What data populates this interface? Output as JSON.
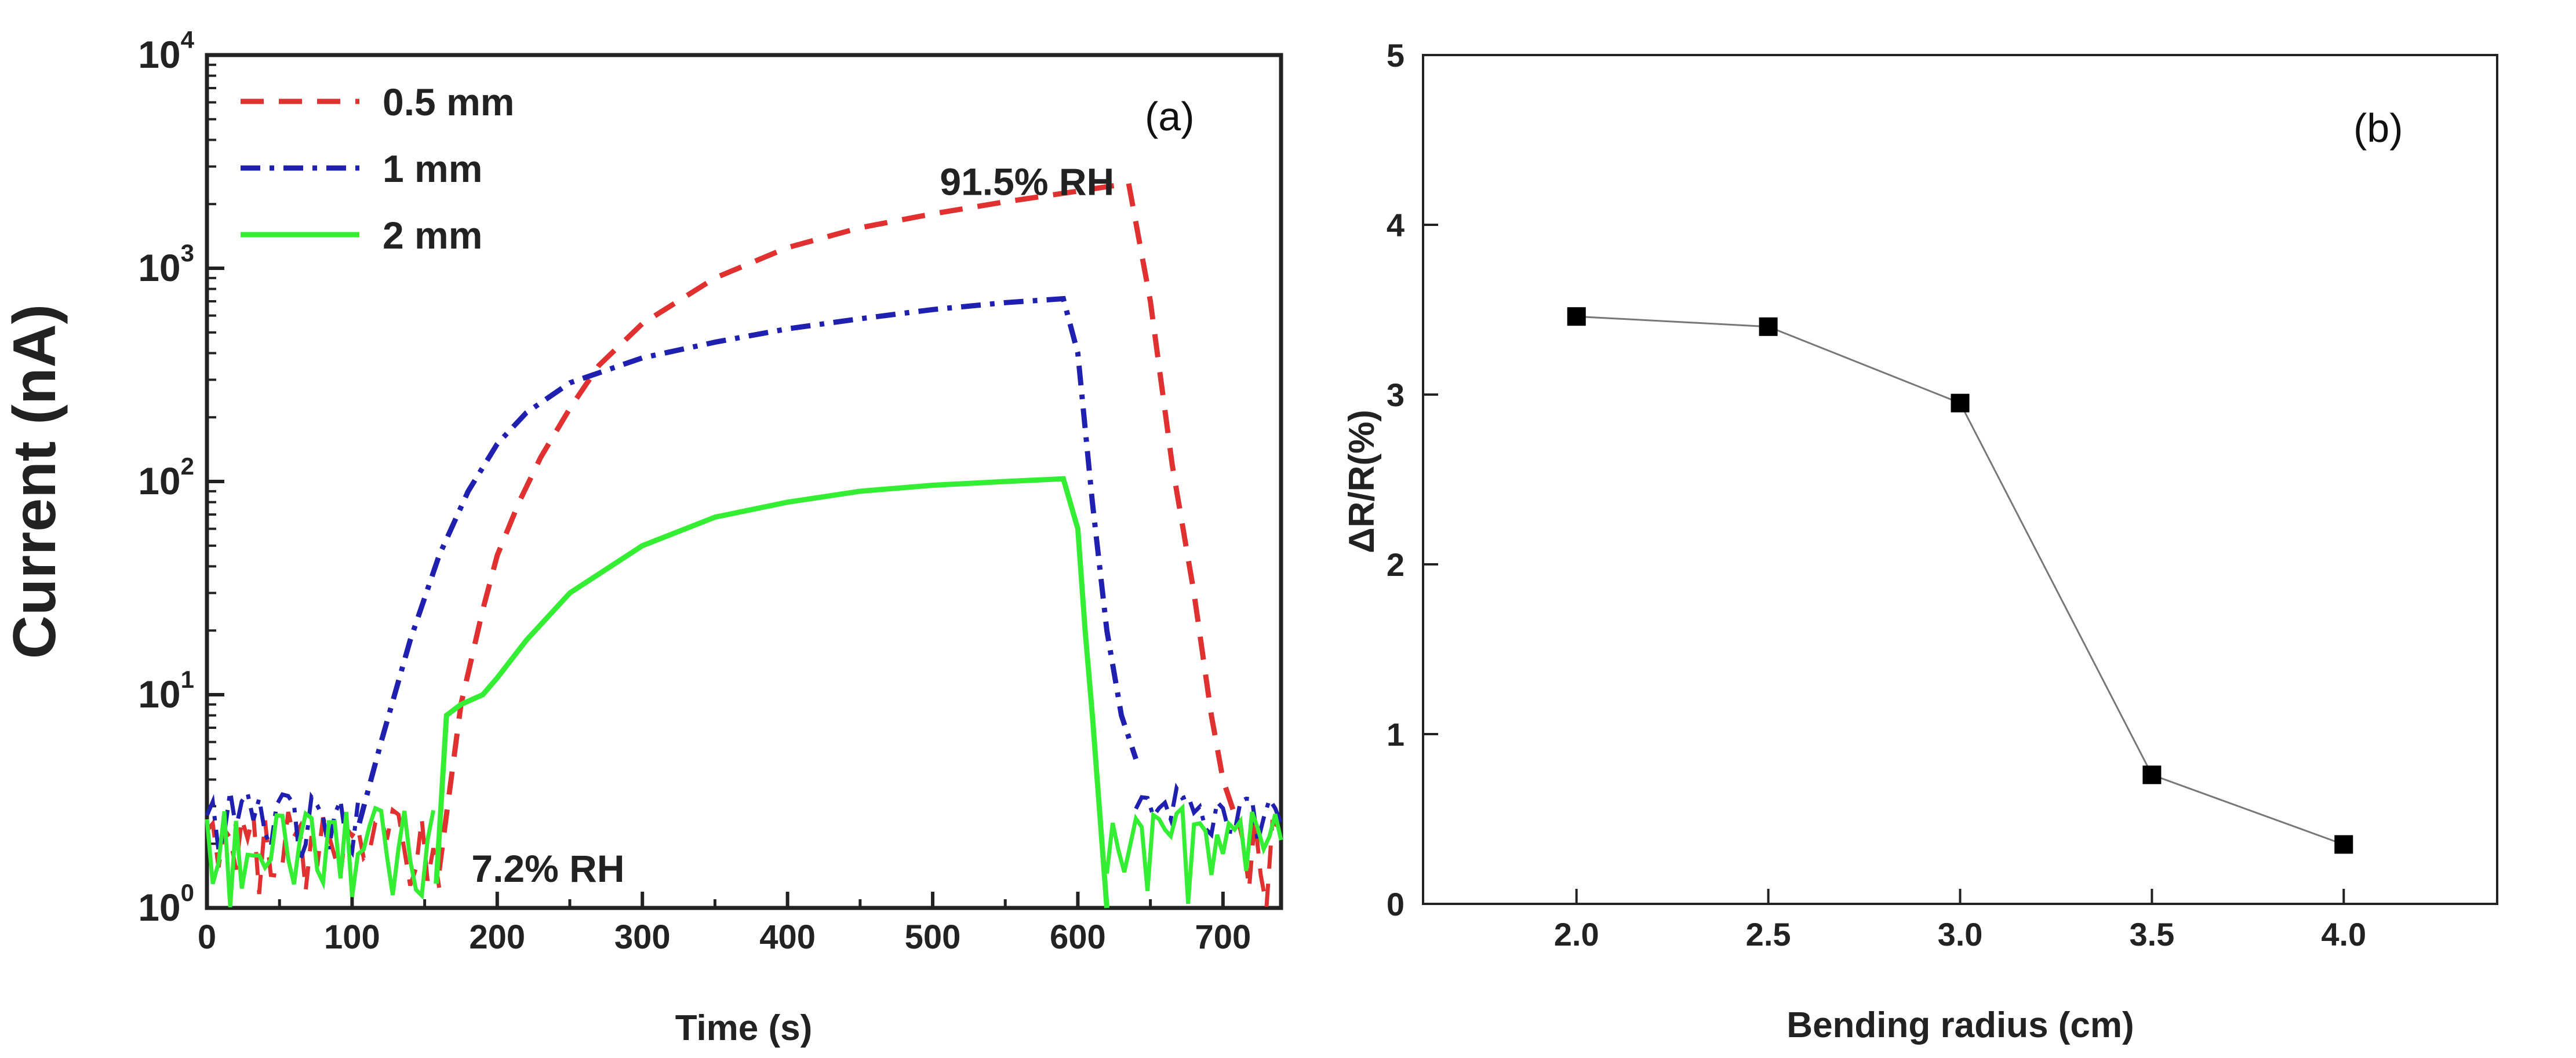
{
  "chart_data": [
    {
      "type": "line",
      "panel_label": "(a)",
      "xlabel": "Time (s)",
      "ylabel": "Current (nA)",
      "yscale": "log",
      "xlim": [
        0,
        740
      ],
      "ylim": [
        1,
        10000
      ],
      "xticks": [
        0,
        100,
        200,
        300,
        400,
        500,
        600,
        700
      ],
      "yticks": [
        {
          "base": "10",
          "exp": "0",
          "value": 1
        },
        {
          "base": "10",
          "exp": "1",
          "value": 10
        },
        {
          "base": "10",
          "exp": "2",
          "value": 100
        },
        {
          "base": "10",
          "exp": "3",
          "value": 1000
        },
        {
          "base": "10",
          "exp": "4",
          "value": 10000
        }
      ],
      "annotations": [
        {
          "text": "91.5% RH",
          "x": 565,
          "y": 2500
        },
        {
          "text": "7.2% RH",
          "x": 235,
          "y": 1.5
        }
      ],
      "legend_position": "top-left",
      "series": [
        {
          "name": "0.5 mm",
          "color": "#e03030",
          "dash": "dashed",
          "x": [
            160,
            175,
            190,
            200,
            215,
            230,
            250,
            270,
            300,
            350,
            400,
            450,
            500,
            550,
            600,
            635,
            650,
            665,
            680,
            692,
            700,
            710
          ],
          "y": [
            1.5,
            9,
            25,
            45,
            80,
            130,
            220,
            350,
            550,
            900,
            1250,
            1550,
            1800,
            2050,
            2300,
            2500,
            700,
            120,
            30,
            8,
            4,
            2.5
          ]
        },
        {
          "name": "1 mm",
          "color": "#2020b0",
          "dash": "dashdot",
          "x": [
            105,
            120,
            140,
            160,
            180,
            200,
            220,
            250,
            300,
            350,
            400,
            450,
            500,
            550,
            590,
            600,
            610,
            620,
            630,
            640
          ],
          "y": [
            2.5,
            6,
            18,
            45,
            90,
            150,
            210,
            290,
            380,
            450,
            520,
            580,
            640,
            690,
            720,
            400,
            80,
            20,
            8,
            5
          ]
        },
        {
          "name": "2 mm",
          "color": "#33ee33",
          "dash": "solid",
          "x": [
            158,
            165,
            175,
            190,
            200,
            220,
            250,
            300,
            350,
            400,
            450,
            500,
            550,
            590,
            600,
            605,
            610,
            620
          ],
          "y": [
            1.3,
            8,
            9,
            10,
            12,
            18,
            30,
            50,
            68,
            80,
            90,
            96,
            100,
            103,
            60,
            20,
            8,
            1
          ]
        }
      ]
    },
    {
      "type": "line",
      "panel_label": "(b)",
      "xlabel": "Bending radius (cm)",
      "ylabel": "ΔR/R(%)",
      "xlim": [
        1.6,
        4.4
      ],
      "ylim": [
        0,
        5
      ],
      "xticks": [
        "2.0",
        "2.5",
        "3.0",
        "3.5",
        "4.0"
      ],
      "yticks": [
        "0",
        "1",
        "2",
        "3",
        "4",
        "5"
      ],
      "series": [
        {
          "name": "ΔR/R",
          "color": "#000000",
          "marker": "square",
          "x": [
            2.0,
            2.5,
            3.0,
            3.5,
            4.0
          ],
          "y": [
            3.46,
            3.4,
            2.95,
            0.76,
            0.35
          ]
        }
      ]
    }
  ]
}
